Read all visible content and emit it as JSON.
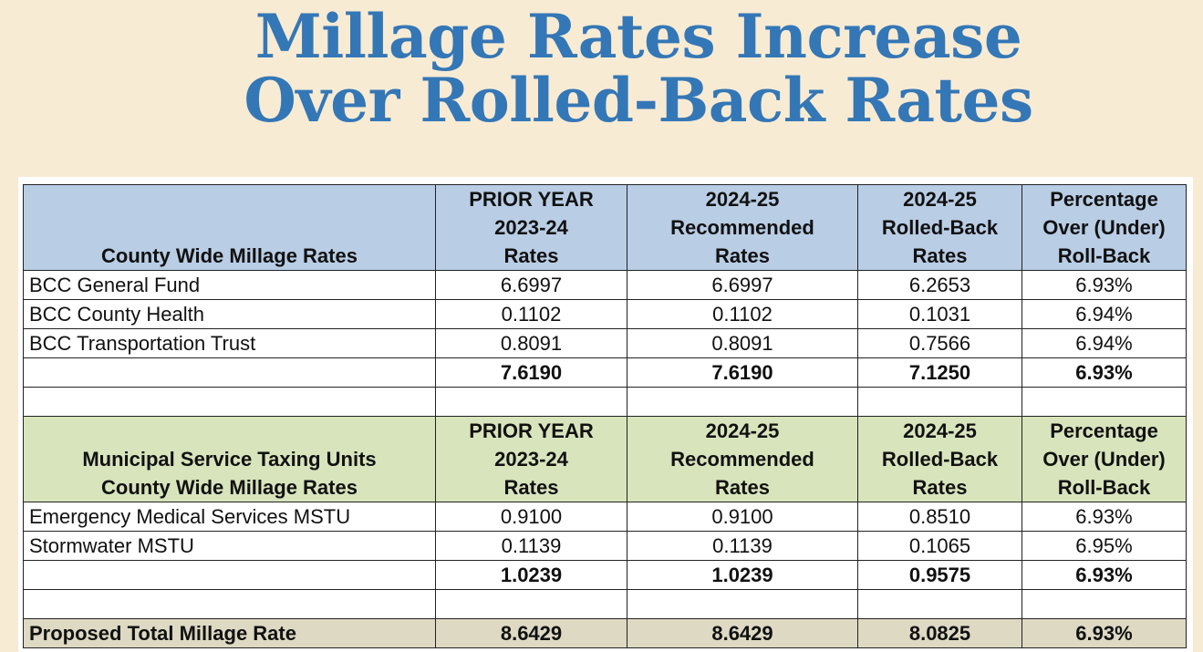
{
  "title": {
    "line1": "Millage Rates Increase",
    "line2": "Over Rolled-Back Rates"
  },
  "colors": {
    "title": "#3477b6",
    "background": "#f8ebd4",
    "header_county": "#b9cde5",
    "header_msTU": "#d8e4bc",
    "total_row": "#ddd9c3"
  },
  "county_header": {
    "label": "County Wide Millage Rates",
    "prior": [
      "PRIOR YEAR",
      "2023-24",
      "Rates"
    ],
    "recommended": [
      "2024-25",
      "Recommended",
      "Rates"
    ],
    "rolled_back": [
      "2024-25",
      "Rolled-Back",
      "Rates"
    ],
    "percentage": [
      "Percentage",
      "Over (Under)",
      "Roll-Back"
    ]
  },
  "county_rows": [
    {
      "name": "BCC General Fund",
      "prior": "6.6997",
      "recommended": "6.6997",
      "rolled_back": "6.2653",
      "percentage": "6.93%"
    },
    {
      "name": "BCC County Health",
      "prior": "0.1102",
      "recommended": "0.1102",
      "rolled_back": "0.1031",
      "percentage": "6.94%"
    },
    {
      "name": "BCC Transportation Trust",
      "prior": "0.8091",
      "recommended": "0.8091",
      "rolled_back": "0.7566",
      "percentage": "6.94%"
    }
  ],
  "county_subtotal": {
    "prior": "7.6190",
    "recommended": "7.6190",
    "rolled_back": "7.1250",
    "percentage": "6.93%"
  },
  "mstu_header": {
    "label_line1": "Municipal Service Taxing Units",
    "label_line2": "County Wide Millage Rates",
    "prior": [
      "PRIOR YEAR",
      "2023-24",
      "Rates"
    ],
    "recommended": [
      "2024-25",
      "Recommended",
      "Rates"
    ],
    "rolled_back": [
      "2024-25",
      "Rolled-Back",
      "Rates"
    ],
    "percentage": [
      "Percentage",
      "Over (Under)",
      "Roll-Back"
    ]
  },
  "mstu_rows": [
    {
      "name": "Emergency Medical Services MSTU",
      "prior": "0.9100",
      "recommended": "0.9100",
      "rolled_back": "0.8510",
      "percentage": "6.93%"
    },
    {
      "name": "Stormwater MSTU",
      "prior": "0.1139",
      "recommended": "0.1139",
      "rolled_back": "0.1065",
      "percentage": "6.95%"
    }
  ],
  "mstu_subtotal": {
    "prior": "1.0239",
    "recommended": "1.0239",
    "rolled_back": "0.9575",
    "percentage": "6.93%"
  },
  "total": {
    "label": "Proposed Total Millage Rate",
    "prior": "8.6429",
    "recommended": "8.6429",
    "rolled_back": "8.0825",
    "percentage": "6.93%"
  }
}
